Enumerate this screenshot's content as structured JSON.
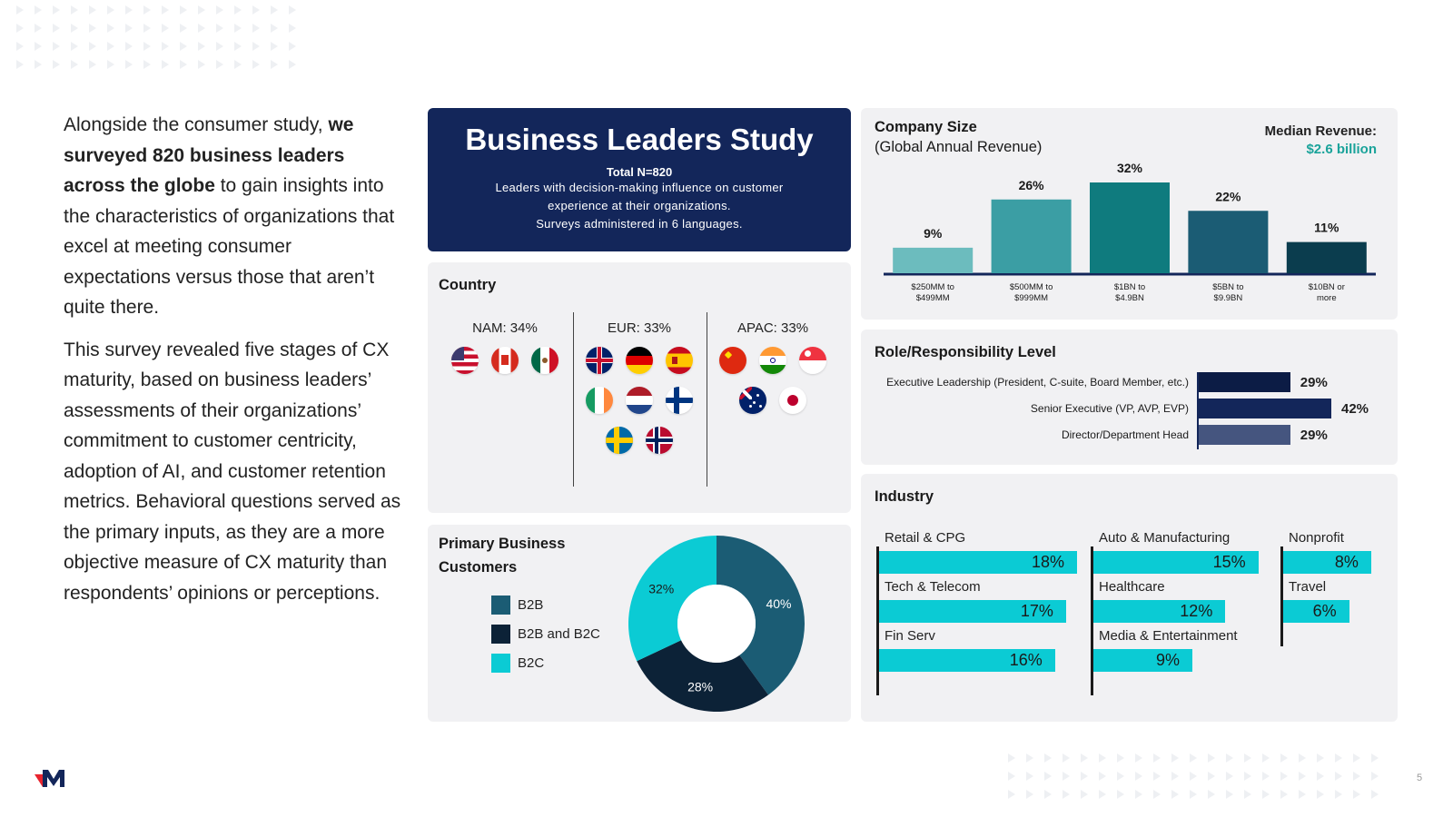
{
  "intro": {
    "p1_a": "Alongside the consumer study,",
    "p1_b": "we surveyed 820 business leaders across the globe",
    "p1_c": " to gain insights into the characteristics of organizations that excel at meeting consumer expectations versus those that aren’t quite there.",
    "p2": "This survey revealed five stages of CX maturity, based on business leaders’ assessments of their organizations’ commitment to customer centricity, adoption of AI, and customer retention metrics. Behavioral questions served as the primary inputs, as they are a more objective measure of CX maturity than respondents’ opinions or perceptions."
  },
  "hero": {
    "title": "Business Leaders Study",
    "total": "Total N=820",
    "line1": "Leaders with decision-making influence on customer",
    "line2": "experience at their organizations.",
    "line3": "Surveys administered in 6 languages."
  },
  "country": {
    "title": "Country",
    "regions": [
      {
        "label": "NAM: 34%",
        "flags": [
          "us",
          "ca",
          "mx"
        ]
      },
      {
        "label": "EUR: 33%",
        "flags": [
          "gb",
          "de",
          "es",
          "ie",
          "nl",
          "fi",
          "se",
          "no"
        ]
      },
      {
        "label": "APAC: 33%",
        "flags": [
          "cn",
          "in",
          "sg",
          "au",
          "jp"
        ]
      }
    ]
  },
  "customers": {
    "title1": "Primary Business",
    "title2": "Customers",
    "legend": [
      "B2B",
      "B2B and B2C",
      "B2C"
    ]
  },
  "company": {
    "title1": "Company Size",
    "title2": "(Global Annual Revenue)",
    "median_label": "Median Revenue:",
    "median_value": "$2.6 billion"
  },
  "role": {
    "title": "Role/Responsibility Level"
  },
  "industry": {
    "title": "Industry"
  },
  "page_number": "5",
  "colors": {
    "navy": "#13265a",
    "teal_light": "#6cbcbe",
    "teal_mid": "#3b9ea4",
    "teal": "#0f7b7e",
    "teal_dark": "#1b5c74",
    "teal_darker": "#0b3d4e",
    "cyan": "#0bcbd4",
    "b2b": "#1b5c74",
    "b2b_b2c": "#0c2237",
    "b2c": "#0bcbd4",
    "brand_red": "#e8242e"
  },
  "chart_data": [
    {
      "type": "bar",
      "title": "Company Size (Global Annual Revenue)",
      "categories": [
        "$250MM to $499MM",
        "$500MM to $999MM",
        "$1BN to $4.9BN",
        "$5BN to $9.9BN",
        "$10BN or more"
      ],
      "values": [
        9,
        26,
        32,
        22,
        11
      ],
      "value_labels": [
        "9%",
        "26%",
        "32%",
        "22%",
        "11%"
      ],
      "ylim": [
        0,
        32
      ]
    },
    {
      "type": "bar",
      "orientation": "horizontal",
      "title": "Role/Responsibility Level",
      "categories": [
        "Executive Leadership (President, C-suite, Board Member, etc.)",
        "Senior Executive (VP, AVP, EVP)",
        "Director/Department Head"
      ],
      "values": [
        29,
        42,
        29
      ],
      "value_labels": [
        "29%",
        "42%",
        "29%"
      ]
    },
    {
      "type": "pie",
      "title": "Primary Business Customers",
      "categories": [
        "B2B",
        "B2B and B2C",
        "B2C"
      ],
      "values": [
        40,
        28,
        32
      ],
      "value_labels": [
        "40%",
        "28%",
        "32%"
      ]
    },
    {
      "type": "bar",
      "orientation": "horizontal",
      "title": "Industry",
      "categories": [
        "Retail & CPG",
        "Tech & Telecom",
        "Fin Serv",
        "Auto & Manufacturing",
        "Healthcare",
        "Media & Entertainment",
        "Nonprofit",
        "Travel"
      ],
      "values": [
        18,
        17,
        16,
        15,
        12,
        9,
        8,
        6
      ],
      "value_labels": [
        "18%",
        "17%",
        "16%",
        "15%",
        "12%",
        "9%",
        "8%",
        "6%"
      ]
    }
  ]
}
